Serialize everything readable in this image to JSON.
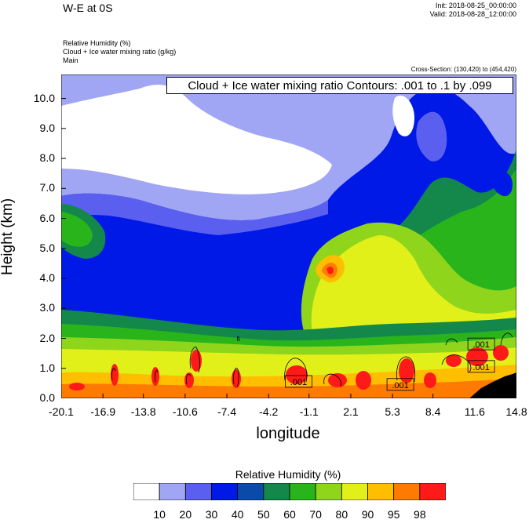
{
  "header": {
    "title": "W-E at 0S",
    "init": "Init: 2018-08-25_00:00:00",
    "valid": "Valid: 2018-08-28_12:00:00",
    "subtitle_lines": [
      "Relative Humidity   (%)",
      "Cloud + Ice water mixing ratio   (g/kg)",
      "Main"
    ],
    "cross_section": "Cross-Section: (130,420) to (454,420)",
    "contour_label": "Cloud + Ice water mixing ratio Contours: .001 to .1 by .099"
  },
  "chart_data": {
    "type": "heatmap",
    "xlabel": "longitude",
    "ylabel": "Height (km)",
    "xlim": [
      -20.1,
      14.8
    ],
    "ylim": [
      0.0,
      10.8
    ],
    "x_ticks": [
      "-20.1",
      "-16.9",
      "-13.8",
      "-10.6",
      "-7.4",
      "-4.2",
      "-1.1",
      "2.1",
      "5.3",
      "8.4",
      "11.6",
      "14.8"
    ],
    "y_ticks": [
      "0.0",
      "1.0",
      "2.0",
      "3.0",
      "4.0",
      "5.0",
      "6.0",
      "7.0",
      "8.0",
      "9.0",
      "10.0"
    ],
    "colorbar": {
      "title": "Relative Humidity  (%)",
      "levels": [
        "10",
        "20",
        "30",
        "40",
        "50",
        "60",
        "70",
        "80",
        "90",
        "95",
        "98"
      ],
      "colors": [
        "#ffffff",
        "#a0a6f4",
        "#5a5ff0",
        "#0019e6",
        "#0a4aa8",
        "#13884a",
        "#2ab41c",
        "#8fd51c",
        "#e2f01a",
        "#ffbf00",
        "#ff7a00",
        "#ff1a1a"
      ]
    },
    "contour_labels": [
      {
        "text": ".001",
        "x": -1.9,
        "y": 0.55
      },
      {
        "text": ".001",
        "x": 5.9,
        "y": 0.45
      },
      {
        "text": ".001",
        "x": 12.1,
        "y": 1.8
      },
      {
        "text": ".001",
        "x": 12.1,
        "y": 1.05
      }
    ]
  }
}
